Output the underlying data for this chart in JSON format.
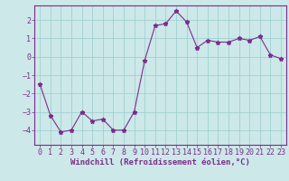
{
  "x": [
    0,
    1,
    2,
    3,
    4,
    5,
    6,
    7,
    8,
    9,
    10,
    11,
    12,
    13,
    14,
    15,
    16,
    17,
    18,
    19,
    20,
    21,
    22,
    23
  ],
  "y": [
    -1.5,
    -3.2,
    -4.1,
    -4.0,
    -3.0,
    -3.5,
    -3.4,
    -4.0,
    -4.0,
    -3.0,
    -0.2,
    1.7,
    1.8,
    2.5,
    1.9,
    0.5,
    0.9,
    0.8,
    0.8,
    1.0,
    0.9,
    1.1,
    0.1,
    -0.1
  ],
  "line_color": "#7b2d8b",
  "marker": "*",
  "marker_color": "#7b2d8b",
  "bg_color": "#cce8e8",
  "grid_color": "#99cccc",
  "xlabel": "Windchill (Refroidissement éolien,°C)",
  "xlabel_color": "#7b2d8b",
  "tick_color": "#7b2d8b",
  "ylim": [
    -4.8,
    2.8
  ],
  "xlim": [
    -0.5,
    23.5
  ],
  "yticks": [
    -4,
    -3,
    -2,
    -1,
    0,
    1,
    2
  ],
  "xticks": [
    0,
    1,
    2,
    3,
    4,
    5,
    6,
    7,
    8,
    9,
    10,
    11,
    12,
    13,
    14,
    15,
    16,
    17,
    18,
    19,
    20,
    21,
    22,
    23
  ],
  "spine_color": "#7b2d8b",
  "xlabel_fontsize": 6.5,
  "tick_fontsize": 6.0,
  "line_width": 0.8,
  "marker_size": 3.5
}
